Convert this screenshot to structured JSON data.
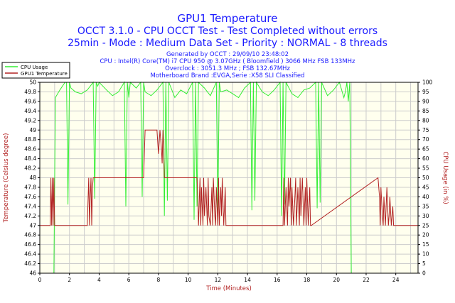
{
  "title": "GPU1 Temperature",
  "subtitle1": "OCCT 3.1.0 - CPU OCCT Test - Test Completed without errors",
  "subtitle2": "25min - Mode : Medium Data Set - Priority : NORMAL - 8 threads",
  "info_lines": [
    "Generated by OCCT : 29/09/10 23:48:02",
    "CPU : Intel(R) Core(TM) i7 CPU 950 @ 3.07GHz ( Bloomfield ) 3066 MHz FSB 133MHz",
    "Overclock : 3051.3 MHz ; FSB 132.67MHz",
    "Motherboard Brand :EVGA,Serie :X58 SLI Classified"
  ],
  "colors": {
    "cpu": "#33ee33",
    "gpu": "#b22222",
    "text_blue": "#1a1aff",
    "axis_red": "#b22222",
    "plot_bg": "#ffffee",
    "grid": "#cccccc"
  },
  "chart_data": {
    "type": "line",
    "xlabel": "Time (Minutes)",
    "ylabel_left": "Temperature (Celsius degree)",
    "ylabel_right": "CPU Usage (in %)",
    "xlim": [
      0,
      25.5
    ],
    "ylim_left": [
      46,
      50
    ],
    "ylim_right": [
      0,
      100
    ],
    "x_ticks": [
      0,
      2,
      4,
      6,
      8,
      10,
      12,
      14,
      16,
      18,
      20,
      22,
      24
    ],
    "x_minor_ticks": [
      1,
      3,
      5,
      7,
      9,
      11,
      13,
      15,
      17,
      19,
      21,
      23,
      25
    ],
    "y_ticks_left": [
      "46",
      "46.2",
      "46.4",
      "46.6",
      "46.8",
      "47",
      "47.2",
      "47.4",
      "47.6",
      "47.8",
      "48",
      "48.2",
      "48.4",
      "48.6",
      "48.8",
      "49",
      "49.2",
      "49.4",
      "49.6",
      "49.8",
      "50"
    ],
    "y_ticks_right": [
      0,
      5,
      10,
      15,
      20,
      25,
      30,
      35,
      40,
      45,
      50,
      55,
      60,
      65,
      70,
      75,
      80,
      85,
      90,
      95,
      100
    ],
    "grid": true,
    "legend_position": "top-left",
    "series": [
      {
        "name": "CPU Usage",
        "axis": "right",
        "x": [
          0.95,
          1.05,
          1.35,
          1.7,
          1.8,
          1.9,
          2.0,
          2.1,
          2.4,
          2.8,
          3.2,
          3.6,
          3.7,
          3.8,
          3.9,
          4.0,
          4.5,
          4.9,
          5.3,
          5.7,
          5.8,
          5.9,
          6.0,
          6.1,
          6.5,
          6.8,
          6.9,
          7.0,
          7.1,
          7.5,
          7.9,
          8.3,
          8.4,
          8.5,
          8.6,
          8.7,
          9.1,
          9.5,
          9.9,
          10.3,
          10.4,
          10.5,
          10.6,
          10.7,
          11.1,
          11.5,
          11.9,
          12.0,
          12.1,
          12.2,
          12.6,
          13.0,
          13.4,
          13.8,
          14.2,
          14.3,
          14.4,
          14.5,
          14.6,
          15.0,
          15.4,
          15.8,
          16.2,
          16.3,
          16.4,
          16.5,
          16.6,
          17.0,
          17.4,
          17.8,
          18.2,
          18.6,
          18.7,
          18.8,
          18.9,
          19.0,
          19.4,
          19.8,
          20.2,
          20.5,
          20.6,
          20.7,
          20.8,
          20.9,
          21.0,
          21.1
        ],
        "values": [
          0,
          92,
          96,
          100,
          100,
          36,
          100,
          97,
          95,
          94,
          96,
          100,
          39,
          100,
          98,
          100,
          96,
          93,
          95,
          100,
          35,
          100,
          92,
          100,
          97,
          100,
          40,
          100,
          95,
          93,
          96,
          100,
          30,
          100,
          38,
          100,
          92,
          96,
          94,
          100,
          28,
          100,
          35,
          100,
          97,
          93,
          100,
          30,
          100,
          95,
          96,
          94,
          92,
          97,
          100,
          33,
          100,
          38,
          100,
          95,
          93,
          96,
          100,
          30,
          100,
          36,
          100,
          94,
          92,
          96,
          97,
          100,
          34,
          100,
          37,
          100,
          93,
          96,
          100,
          92,
          95,
          100,
          90,
          100,
          0,
          0
        ]
      },
      {
        "name": "GPU1 Temperature",
        "axis": "left",
        "x": [
          0,
          0.7,
          0.75,
          0.8,
          0.85,
          0.9,
          0.95,
          1.0,
          1.05,
          3.2,
          3.3,
          3.35,
          3.4,
          3.45,
          3.5,
          3.55,
          3.6,
          7.0,
          7.1,
          7.9,
          8.0,
          8.1,
          8.2,
          8.25,
          8.3,
          8.35,
          8.4,
          10.6,
          10.65,
          10.7,
          10.8,
          10.85,
          10.9,
          11.0,
          11.05,
          11.1,
          11.2,
          11.3,
          11.35,
          11.4,
          11.5,
          11.6,
          11.65,
          11.7,
          11.8,
          11.85,
          11.9,
          12.0,
          12.05,
          12.1,
          12.2,
          12.25,
          12.3,
          12.4,
          12.5,
          12.55,
          16.4,
          16.45,
          16.5,
          16.6,
          16.7,
          16.75,
          16.8,
          16.9,
          16.95,
          17.0,
          17.1,
          17.2,
          17.25,
          17.3,
          17.4,
          17.5,
          17.55,
          17.6,
          17.7,
          17.8,
          17.9,
          17.95,
          18.0,
          18.1,
          18.2,
          18.25,
          18.3,
          22.8,
          22.9,
          22.95,
          23.0,
          23.1,
          23.15,
          23.2,
          23.3,
          23.35,
          23.4,
          23.5,
          23.55,
          23.6,
          23.7,
          23.8,
          23.85,
          23.9,
          24.0,
          25.5
        ],
        "values": [
          47,
          47,
          48,
          47,
          48,
          47,
          48,
          47,
          47,
          47,
          48,
          47,
          47.6,
          48,
          47,
          47.8,
          48,
          48,
          49,
          49,
          48.5,
          49,
          48.6,
          48.3,
          49,
          48.6,
          48,
          48,
          47.6,
          47,
          48,
          47,
          47.8,
          47,
          48,
          47.2,
          47.8,
          47,
          48,
          47.2,
          47,
          47.8,
          47,
          48,
          47.2,
          47,
          47.8,
          47,
          48,
          47,
          47.8,
          47.2,
          48,
          47,
          47.8,
          47,
          47,
          48,
          47,
          47.8,
          47,
          48,
          47.4,
          48,
          47,
          47.8,
          47,
          47.6,
          48,
          47,
          47.8,
          47,
          48,
          47.2,
          48,
          47,
          47.8,
          47,
          48,
          47,
          47.8,
          47,
          47,
          48,
          47.6,
          47,
          47.8,
          47.2,
          47,
          47.6,
          47,
          47.4,
          47.8,
          47,
          47.2,
          47.6,
          47,
          47.4,
          47,
          47,
          47,
          47
        ]
      }
    ]
  }
}
